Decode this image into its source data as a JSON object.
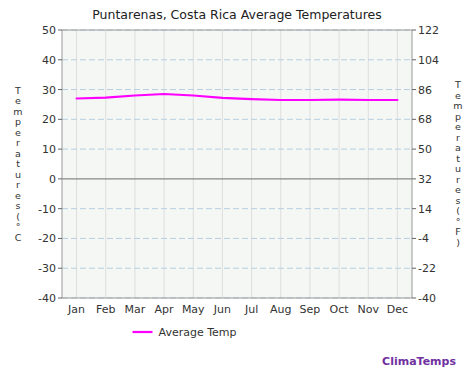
{
  "chart_data": {
    "type": "line",
    "title": "Puntarenas, Costa Rica Average Temperatures",
    "categories": [
      "Jan",
      "Feb",
      "Mar",
      "Apr",
      "May",
      "Jun",
      "Jul",
      "Aug",
      "Sep",
      "Oct",
      "Nov",
      "Dec"
    ],
    "series": [
      {
        "name": "Average Temp",
        "color": "#ff00ff",
        "values": [
          27.0,
          27.3,
          28.0,
          28.5,
          28.0,
          27.2,
          26.8,
          26.5,
          26.5,
          26.6,
          26.5,
          26.5
        ]
      }
    ],
    "ylim": [
      -40,
      50
    ],
    "yticks": [
      -40,
      -30,
      -20,
      -10,
      0,
      10,
      20,
      30,
      40,
      50
    ],
    "y2lim": [
      -40.0,
      122.0
    ],
    "y2ticks": [
      -40,
      -22,
      -4,
      14,
      32,
      50,
      68,
      86,
      104,
      122
    ],
    "y_label": "Temperatures(°C",
    "y2_label": "Temperatures(°F)",
    "grid": true,
    "legend": "bottom",
    "annotations": [
      {
        "text": "ClimaTemps",
        "color": "#7030a0"
      }
    ]
  }
}
